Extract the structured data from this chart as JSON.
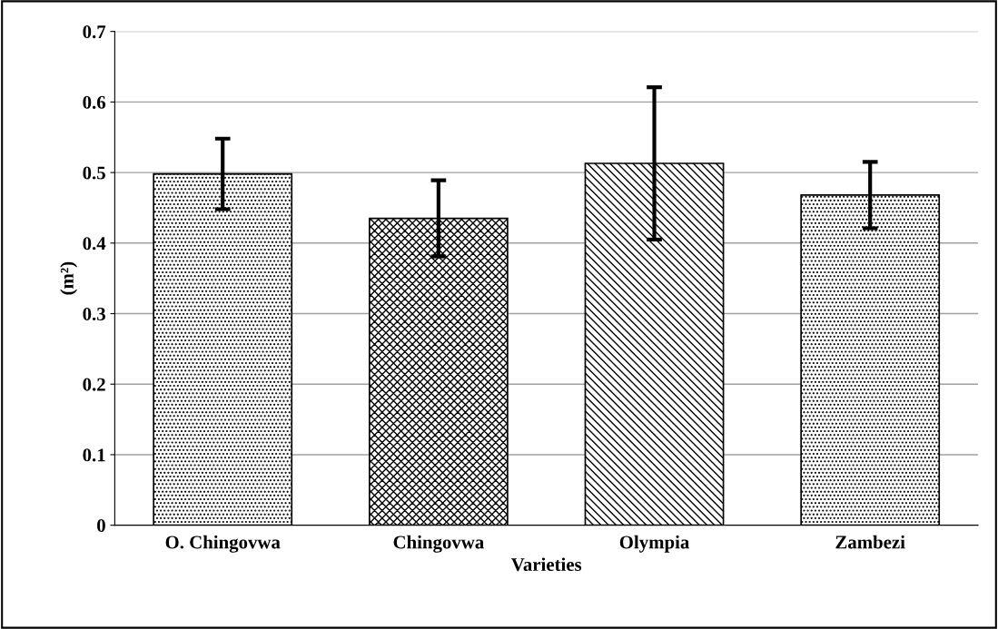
{
  "chart_data": {
    "type": "bar",
    "categories": [
      "O. Chingovwa",
      "Chingovwa",
      "Olympia",
      "Zambezi"
    ],
    "values": [
      0.498,
      0.435,
      0.513,
      0.468
    ],
    "errors": [
      0.05,
      0.054,
      0.108,
      0.047
    ],
    "colors": [
      "#000000",
      "#000000",
      "#000000",
      "#000000"
    ],
    "xlabel": "Varieties",
    "ylabel": "(m²)",
    "ylim": [
      0,
      0.7
    ],
    "yticks": [
      0,
      0.1,
      0.2,
      0.3,
      0.4,
      0.5,
      0.6,
      0.7
    ],
    "grid": "y",
    "legend": false
  }
}
